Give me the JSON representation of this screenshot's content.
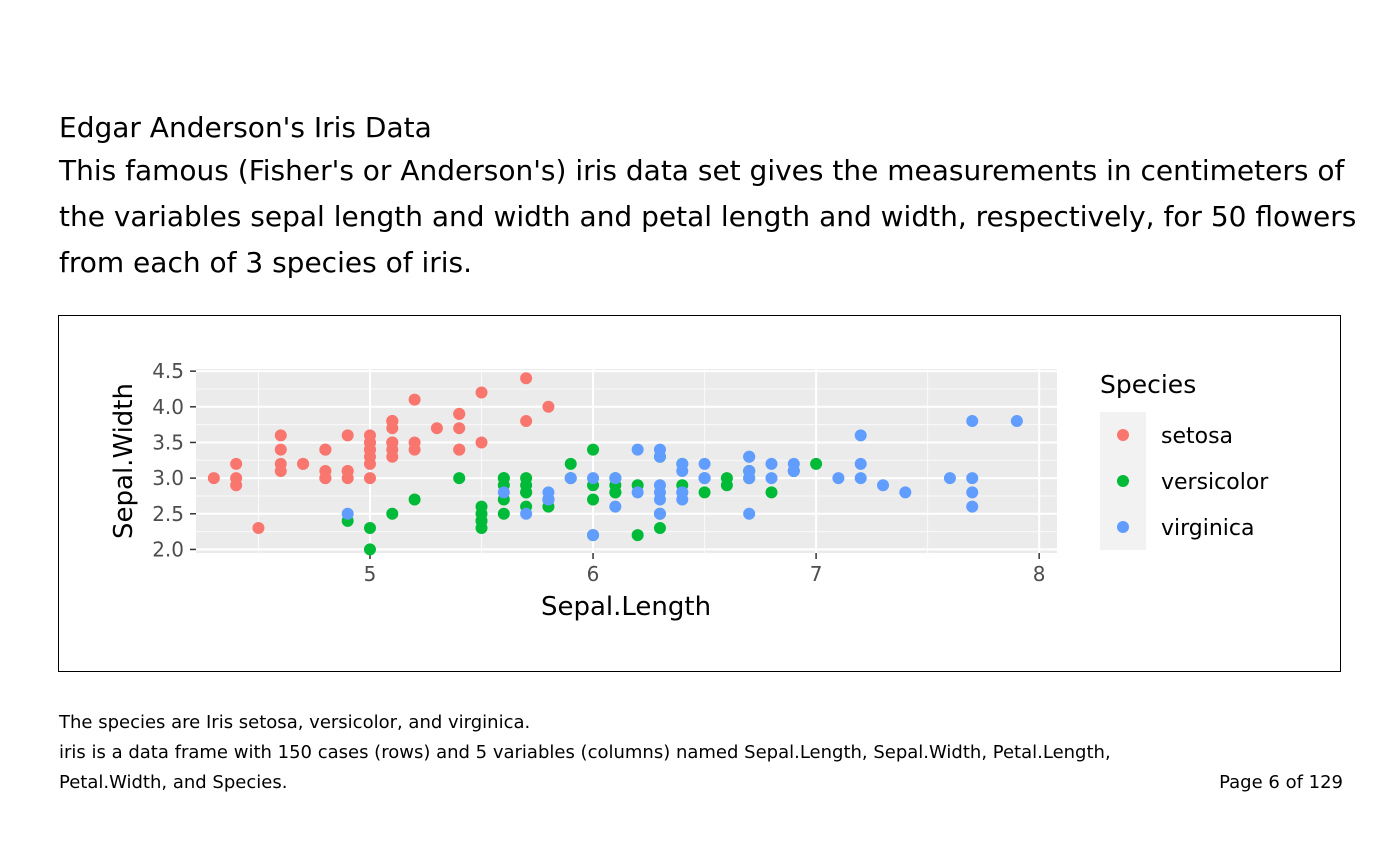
{
  "document": {
    "title": "Edgar Anderson's Iris Data",
    "description": "This famous (Fisher's or Anderson's) iris data set gives the measurements in centimeters of the variables sepal length and width and petal length and width, respectively, for 50 flowers from each of 3 species of iris.",
    "footer_line1": "The species are Iris setosa, versicolor, and virginica.",
    "footer_line2": "iris is a data frame with 150 cases (rows) and 5 variables (columns) named Sepal.Length, Sepal.Width, Petal.Length, Petal.Width, and Species.",
    "page_label": "Page 6 of 129"
  },
  "chart_data": {
    "type": "scatter",
    "xlabel": "Sepal.Length",
    "ylabel": "Sepal.Width",
    "xlim": [
      4.22,
      8.08
    ],
    "ylim": [
      1.95,
      4.53
    ],
    "x_ticks": [
      5,
      6,
      7,
      8
    ],
    "x_tick_labels": [
      "5",
      "6",
      "7",
      "8"
    ],
    "y_ticks": [
      2.0,
      2.5,
      3.0,
      3.5,
      4.0,
      4.5
    ],
    "y_tick_labels": [
      "2.0",
      "2.5",
      "3.0",
      "3.5",
      "4.0",
      "4.5"
    ],
    "grid": true,
    "legend_title": "Species",
    "legend_position": "right",
    "series": [
      {
        "name": "setosa",
        "color": "#F8766D",
        "x": [
          5.1,
          4.9,
          4.7,
          4.6,
          5.0,
          5.4,
          4.6,
          5.0,
          4.4,
          4.9,
          5.4,
          4.8,
          4.8,
          4.3,
          5.8,
          5.7,
          5.4,
          5.1,
          5.7,
          5.1,
          5.4,
          5.1,
          4.6,
          5.1,
          4.8,
          5.0,
          5.0,
          5.2,
          5.2,
          4.7,
          4.8,
          5.4,
          5.2,
          5.5,
          4.9,
          5.0,
          5.5,
          4.9,
          4.4,
          5.1,
          5.0,
          4.5,
          4.4,
          5.0,
          5.1,
          4.8,
          5.1,
          4.6,
          5.3,
          5.0
        ],
        "y": [
          3.5,
          3.0,
          3.2,
          3.1,
          3.6,
          3.9,
          3.4,
          3.4,
          2.9,
          3.1,
          3.7,
          3.4,
          3.0,
          3.0,
          4.0,
          4.4,
          3.9,
          3.5,
          3.8,
          3.8,
          3.4,
          3.7,
          3.6,
          3.3,
          3.4,
          3.0,
          3.4,
          3.5,
          3.4,
          3.2,
          3.1,
          3.4,
          4.1,
          4.2,
          3.1,
          3.2,
          3.5,
          3.6,
          3.0,
          3.4,
          3.5,
          2.3,
          3.2,
          3.5,
          3.8,
          3.0,
          3.8,
          3.2,
          3.7,
          3.3
        ]
      },
      {
        "name": "versicolor",
        "color": "#00BA38",
        "x": [
          7.0,
          6.4,
          6.9,
          5.5,
          6.5,
          5.7,
          6.3,
          4.9,
          6.6,
          5.2,
          5.0,
          5.9,
          6.0,
          6.1,
          5.6,
          6.7,
          5.6,
          5.8,
          6.2,
          5.6,
          5.9,
          6.1,
          6.3,
          6.1,
          6.4,
          6.6,
          6.8,
          6.7,
          6.0,
          5.7,
          5.5,
          5.5,
          5.8,
          6.0,
          5.4,
          6.0,
          6.7,
          6.3,
          5.6,
          5.5,
          5.5,
          6.1,
          5.8,
          5.0,
          5.6,
          5.7,
          5.7,
          6.2,
          5.1,
          5.7
        ],
        "y": [
          3.2,
          3.2,
          3.1,
          2.3,
          2.8,
          2.8,
          3.3,
          2.4,
          2.9,
          2.7,
          2.0,
          3.0,
          2.2,
          2.9,
          2.9,
          3.1,
          3.0,
          2.7,
          2.2,
          2.5,
          3.2,
          2.8,
          2.5,
          2.8,
          2.9,
          3.0,
          2.8,
          3.0,
          2.9,
          2.6,
          2.4,
          2.4,
          2.7,
          2.7,
          3.0,
          3.4,
          3.1,
          2.3,
          3.0,
          2.5,
          2.6,
          3.0,
          2.6,
          2.3,
          2.7,
          3.0,
          2.9,
          2.9,
          2.5,
          2.8
        ]
      },
      {
        "name": "virginica",
        "color": "#619CFF",
        "x": [
          6.3,
          5.8,
          7.1,
          6.3,
          6.5,
          7.6,
          4.9,
          7.3,
          6.7,
          7.2,
          6.5,
          6.4,
          6.8,
          5.7,
          5.8,
          6.4,
          6.5,
          7.7,
          7.7,
          6.0,
          6.9,
          5.6,
          7.7,
          6.3,
          6.7,
          7.2,
          6.2,
          6.1,
          6.4,
          7.2,
          7.4,
          7.9,
          6.4,
          6.3,
          6.1,
          7.7,
          6.3,
          6.4,
          6.0,
          6.9,
          6.7,
          6.9,
          5.8,
          6.8,
          6.7,
          6.7,
          6.3,
          6.5,
          6.2,
          5.9
        ],
        "y": [
          3.3,
          2.7,
          3.0,
          2.9,
          3.0,
          3.0,
          2.5,
          2.9,
          2.5,
          3.6,
          3.2,
          2.7,
          3.0,
          2.5,
          2.8,
          3.2,
          3.0,
          3.8,
          2.6,
          2.2,
          3.2,
          2.8,
          2.8,
          2.7,
          3.3,
          3.2,
          2.8,
          3.0,
          2.8,
          3.0,
          2.8,
          3.8,
          2.8,
          2.8,
          2.6,
          3.0,
          3.4,
          3.1,
          3.0,
          3.1,
          3.1,
          3.1,
          2.7,
          3.2,
          3.3,
          3.0,
          2.5,
          3.0,
          3.4,
          3.0
        ]
      }
    ]
  }
}
